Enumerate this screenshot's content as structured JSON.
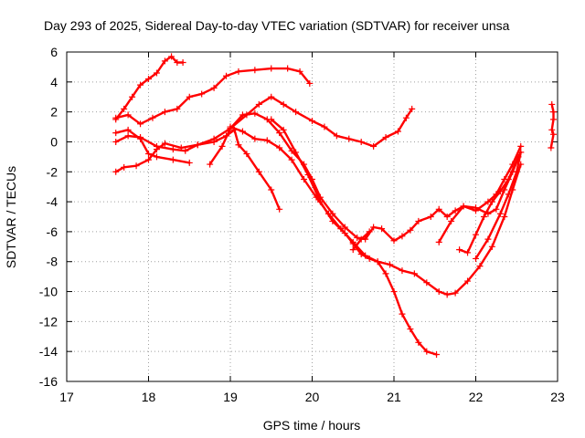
{
  "chart_data": {
    "type": "scatter",
    "title": "Day 293 of 2025, Sidereal Day-to-day VTEC variation (SDTVAR) for receiver unsa",
    "xlabel": "GPS time / hours",
    "ylabel": "SDTVAR / TECUs",
    "xlim": [
      17,
      23
    ],
    "ylim": [
      -16,
      6
    ],
    "xticks": [
      17,
      18,
      19,
      20,
      21,
      22,
      23
    ],
    "yticks": [
      -16,
      -14,
      -12,
      -10,
      -8,
      -6,
      -4,
      -2,
      0,
      2,
      4,
      6
    ],
    "grid": true,
    "marker": "+",
    "color": "#ff0000",
    "series": [
      {
        "name": "trace-1",
        "points": [
          [
            17.6,
            1.5
          ],
          [
            17.7,
            2.2
          ],
          [
            17.8,
            3.0
          ],
          [
            17.9,
            3.8
          ],
          [
            18.0,
            4.2
          ],
          [
            18.1,
            4.6
          ],
          [
            18.2,
            5.4
          ],
          [
            18.28,
            5.7
          ],
          [
            18.35,
            5.3
          ],
          [
            18.42,
            5.3
          ]
        ]
      },
      {
        "name": "trace-2",
        "points": [
          [
            17.6,
            1.6
          ],
          [
            17.75,
            1.8
          ],
          [
            17.9,
            1.2
          ],
          [
            18.05,
            1.6
          ],
          [
            18.2,
            2.0
          ],
          [
            18.35,
            2.2
          ],
          [
            18.5,
            3.0
          ],
          [
            18.65,
            3.2
          ],
          [
            18.8,
            3.6
          ],
          [
            18.95,
            4.4
          ],
          [
            19.1,
            4.7
          ],
          [
            19.3,
            4.8
          ],
          [
            19.5,
            4.9
          ],
          [
            19.7,
            4.9
          ],
          [
            19.85,
            4.7
          ],
          [
            19.97,
            3.9
          ]
        ]
      },
      {
        "name": "trace-3",
        "points": [
          [
            17.6,
            -2.0
          ],
          [
            17.7,
            -1.7
          ],
          [
            17.85,
            -1.6
          ],
          [
            18.0,
            -1.2
          ],
          [
            18.1,
            -0.5
          ],
          [
            18.2,
            -0.1
          ],
          [
            18.4,
            -0.4
          ],
          [
            18.6,
            -0.2
          ],
          [
            18.8,
            0.2
          ],
          [
            19.0,
            0.9
          ],
          [
            19.2,
            1.8
          ],
          [
            19.35,
            2.5
          ],
          [
            19.5,
            3.0
          ],
          [
            19.65,
            2.5
          ],
          [
            19.8,
            2.0
          ],
          [
            20.0,
            1.4
          ],
          [
            20.15,
            1.0
          ],
          [
            20.3,
            0.4
          ],
          [
            20.45,
            0.2
          ],
          [
            20.6,
            0.0
          ],
          [
            20.75,
            -0.3
          ],
          [
            20.9,
            0.3
          ],
          [
            21.05,
            0.7
          ],
          [
            21.15,
            1.6
          ],
          [
            21.22,
            2.2
          ]
        ]
      },
      {
        "name": "trace-4",
        "points": [
          [
            17.6,
            0.6
          ],
          [
            17.75,
            0.8
          ],
          [
            17.9,
            0.2
          ],
          [
            18.0,
            -0.8
          ],
          [
            18.1,
            -1.0
          ],
          [
            18.3,
            -1.2
          ],
          [
            18.5,
            -1.4
          ]
        ]
      },
      {
        "name": "trace-5",
        "points": [
          [
            17.6,
            0.0
          ],
          [
            17.75,
            0.4
          ],
          [
            17.9,
            0.3
          ],
          [
            18.1,
            -0.3
          ],
          [
            18.3,
            -0.5
          ],
          [
            18.45,
            -0.6
          ],
          [
            18.6,
            -0.2
          ],
          [
            18.8,
            0.0
          ],
          [
            18.95,
            0.4
          ],
          [
            19.05,
            0.8
          ],
          [
            19.1,
            -0.2
          ],
          [
            19.2,
            -0.8
          ],
          [
            19.35,
            -2.0
          ],
          [
            19.5,
            -3.2
          ],
          [
            19.6,
            -4.5
          ]
        ]
      },
      {
        "name": "trace-6",
        "points": [
          [
            18.75,
            -1.5
          ],
          [
            18.9,
            -0.3
          ],
          [
            19.0,
            0.9
          ],
          [
            19.15,
            1.8
          ],
          [
            19.3,
            1.9
          ],
          [
            19.45,
            1.5
          ],
          [
            19.6,
            0.6
          ],
          [
            19.75,
            -0.6
          ],
          [
            19.9,
            -1.5
          ],
          [
            20.0,
            -2.5
          ],
          [
            20.1,
            -3.7
          ],
          [
            20.25,
            -4.8
          ],
          [
            20.4,
            -5.7
          ],
          [
            20.55,
            -6.4
          ],
          [
            20.65,
            -6.5
          ],
          [
            20.75,
            -5.7
          ],
          [
            20.85,
            -5.8
          ],
          [
            21.0,
            -6.6
          ],
          [
            21.1,
            -6.3
          ],
          [
            21.2,
            -5.9
          ],
          [
            21.3,
            -5.3
          ],
          [
            21.45,
            -5.0
          ],
          [
            21.55,
            -4.5
          ],
          [
            21.65,
            -5.0
          ],
          [
            21.75,
            -4.6
          ],
          [
            21.85,
            -4.3
          ],
          [
            22.0,
            -4.4
          ],
          [
            22.15,
            -4.8
          ],
          [
            22.25,
            -4.5
          ],
          [
            22.35,
            -3.2
          ],
          [
            22.45,
            -2.0
          ],
          [
            22.55,
            -0.7
          ]
        ]
      },
      {
        "name": "trace-7",
        "points": [
          [
            19.0,
            1.0
          ],
          [
            19.15,
            0.7
          ],
          [
            19.3,
            0.2
          ],
          [
            19.45,
            0.1
          ],
          [
            19.6,
            -0.4
          ],
          [
            19.75,
            -1.2
          ],
          [
            19.9,
            -2.5
          ],
          [
            20.05,
            -3.7
          ],
          [
            20.2,
            -4.8
          ],
          [
            20.35,
            -5.8
          ],
          [
            20.5,
            -6.7
          ],
          [
            20.65,
            -7.6
          ],
          [
            20.8,
            -8.0
          ],
          [
            20.95,
            -8.2
          ],
          [
            21.1,
            -8.6
          ],
          [
            21.25,
            -8.8
          ],
          [
            21.4,
            -9.4
          ],
          [
            21.55,
            -10.0
          ],
          [
            21.65,
            -10.2
          ],
          [
            21.75,
            -10.1
          ],
          [
            21.9,
            -9.3
          ],
          [
            22.05,
            -8.3
          ],
          [
            22.2,
            -7.0
          ],
          [
            22.35,
            -5.0
          ],
          [
            22.45,
            -3.2
          ],
          [
            22.55,
            -1.5
          ]
        ]
      },
      {
        "name": "trace-8",
        "points": [
          [
            19.5,
            1.5
          ],
          [
            19.65,
            0.8
          ],
          [
            19.8,
            -0.7
          ],
          [
            19.95,
            -2.2
          ],
          [
            20.1,
            -4.0
          ],
          [
            20.25,
            -5.3
          ],
          [
            20.4,
            -6.1
          ],
          [
            20.5,
            -6.8
          ],
          [
            20.6,
            -7.5
          ],
          [
            20.7,
            -7.8
          ],
          [
            20.8,
            -8.0
          ],
          [
            20.9,
            -8.8
          ],
          [
            21.0,
            -10.0
          ],
          [
            21.1,
            -11.5
          ],
          [
            21.2,
            -12.5
          ],
          [
            21.3,
            -13.4
          ],
          [
            21.4,
            -14.0
          ],
          [
            21.52,
            -14.2
          ]
        ]
      },
      {
        "name": "trace-9",
        "points": [
          [
            20.5,
            -7.2
          ],
          [
            20.6,
            -6.5
          ],
          [
            20.7,
            -6.0
          ]
        ]
      },
      {
        "name": "trace-10",
        "points": [
          [
            21.55,
            -6.7
          ],
          [
            21.7,
            -5.3
          ],
          [
            21.85,
            -4.3
          ],
          [
            22.0,
            -4.6
          ],
          [
            22.15,
            -4.0
          ],
          [
            22.25,
            -3.5
          ],
          [
            22.35,
            -2.5
          ],
          [
            22.45,
            -1.5
          ],
          [
            22.55,
            -0.3
          ]
        ]
      },
      {
        "name": "trace-11",
        "points": [
          [
            21.8,
            -7.2
          ],
          [
            21.9,
            -7.4
          ],
          [
            22.0,
            -6.2
          ],
          [
            22.1,
            -5.0
          ],
          [
            22.2,
            -4.0
          ],
          [
            22.3,
            -3.3
          ],
          [
            22.4,
            -2.5
          ],
          [
            22.52,
            -1.0
          ]
        ]
      },
      {
        "name": "trace-12",
        "points": [
          [
            22.0,
            -7.8
          ],
          [
            22.15,
            -6.5
          ],
          [
            22.3,
            -4.8
          ],
          [
            22.4,
            -3.5
          ],
          [
            22.5,
            -2.0
          ],
          [
            22.55,
            -0.7
          ]
        ]
      },
      {
        "name": "trace-13",
        "points": [
          [
            22.93,
            2.5
          ],
          [
            22.95,
            2.0
          ],
          [
            22.95,
            1.5
          ],
          [
            22.93,
            0.8
          ],
          [
            22.95,
            0.5
          ],
          [
            22.92,
            -0.4
          ]
        ]
      }
    ]
  }
}
